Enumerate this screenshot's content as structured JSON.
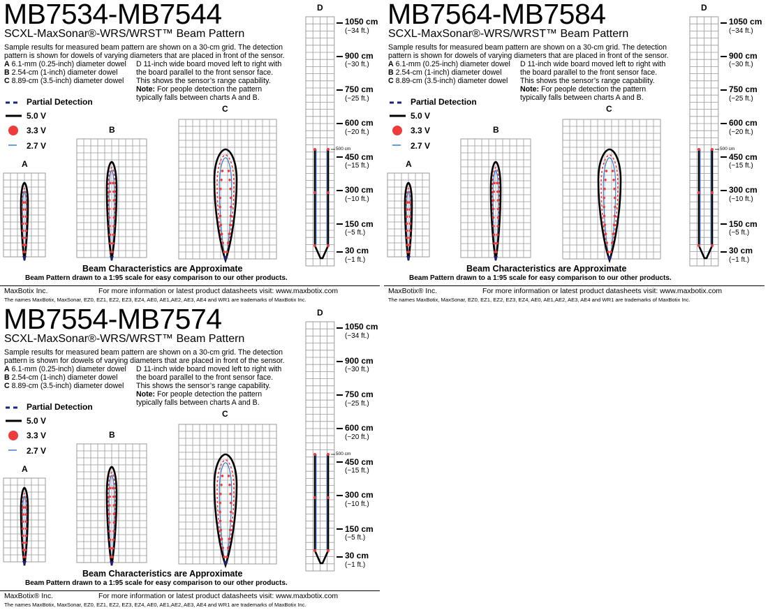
{
  "panels": [
    {
      "title": "MB7534-MB7544",
      "subtitle": "SCXL-MaxSonar®-WRS/WRST™ Beam Pattern"
    },
    {
      "title": "MB7564-MB7584",
      "subtitle": "SCXL-MaxSonar®-WRS/WRST™ Beam Pattern"
    },
    {
      "title": "MB7554-MB7574",
      "subtitle": "SCXL-MaxSonar®-WRS/WRST™ Beam Pattern"
    }
  ],
  "description": {
    "line1": "Sample results for measured beam pattern are shown on a 30-cm grid. The detection",
    "line2": "pattern is shown for dowels of varying diameters that are placed in front of the sensor.",
    "a_key": "A",
    "a_text": "6.1-mm (0.25-inch) diameter dowel",
    "b_key": "B",
    "b_text": "2.54-cm (1-inch) diameter dowel",
    "c_key": "C",
    "c_text": "8.89-cm (3.5-inch) diameter dowel",
    "d_line1": "D 11-inch wide board moved left to right with",
    "d_line2": "the board parallel to the front sensor face.",
    "d_line3": "This shows the sensor’s range capability.",
    "note_label": "Note:",
    "note_line1": " For people detection the pattern",
    "note_line2": "typically falls between charts A and B."
  },
  "legend": {
    "partial": "Partial Detection",
    "v50": "5.0 V",
    "v33": "3.3 V",
    "v27": "2.7 V"
  },
  "chart_labels": {
    "a": "A",
    "b": "B",
    "c": "C",
    "d": "D"
  },
  "range_scale": [
    {
      "cm": "1050 cm",
      "ft": "(~34 ft.)"
    },
    {
      "cm": "900 cm",
      "ft": "(~30 ft.)"
    },
    {
      "cm": "750 cm",
      "ft": "(~25 ft.)"
    },
    {
      "cm": "600 cm",
      "ft": "(~20 ft.)"
    },
    {
      "cm": "450 cm",
      "ft": "(~15 ft.)"
    },
    {
      "cm": "300 cm",
      "ft": "(~10 ft.)"
    },
    {
      "cm": "150 cm",
      "ft": "(~5 ft.)"
    },
    {
      "cm": "30 cm",
      "ft": "(~1 ft.)"
    }
  ],
  "marker_500": "500 cm",
  "approx": "Beam Characteristics are Approximate",
  "scale_note": "Beam Pattern drawn to a 1:95 scale for easy comparison to our other products.",
  "footer": {
    "company": [
      "MaxBotix Inc.",
      "MaxBotix® Inc.",
      "MaxBotix® Inc."
    ],
    "info": "For more information or latest product datasheets visit:  www.maxbotix.com",
    "trademark": "The names MaxBotix, MaxSonar, EZ0, EZ1, EZ2, EZ3, EZ4, AE0, AE1,AE2, AE3, AE4 and WR1 are trademarks of MaxBotix Inc."
  },
  "colors": {
    "v50": "#000000",
    "v33": "#ee3b3b",
    "v27": "#3a7fd5",
    "partial": "#1a237e",
    "grid": "#9a9a9a"
  }
}
